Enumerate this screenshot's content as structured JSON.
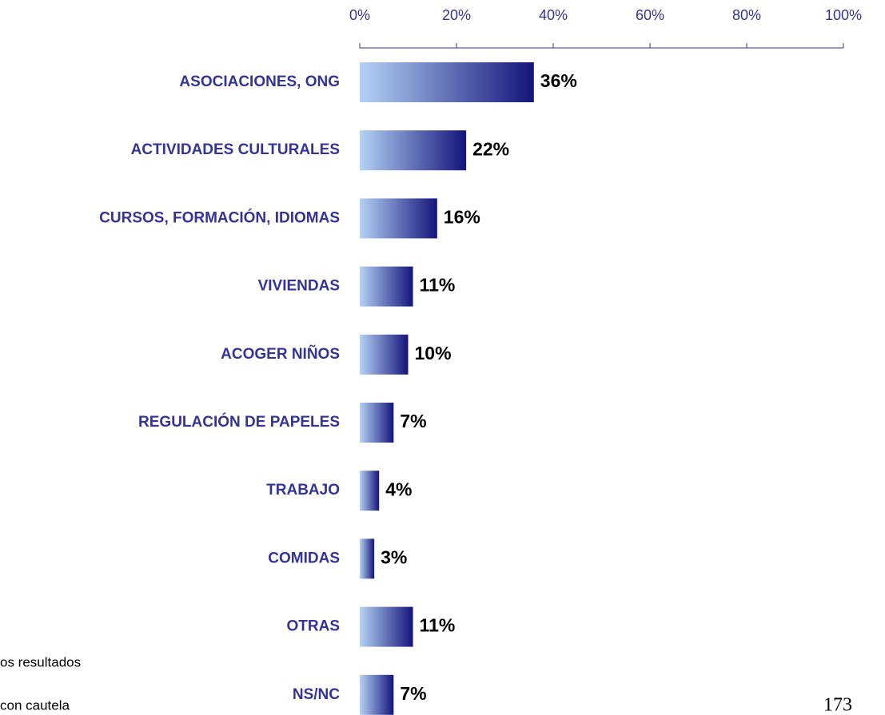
{
  "chart_data": {
    "type": "bar",
    "orientation": "horizontal",
    "categories": [
      "ASOCIACIONES, ONG",
      "ACTIVIDADES CULTURALES",
      "CURSOS, FORMACIÓN, IDIOMAS",
      "VIVIENDAS",
      "ACOGER NIÑOS",
      "REGULACIÓN DE PAPELES",
      "TRABAJO",
      "COMIDAS",
      "OTRAS",
      "NS/NC"
    ],
    "values": [
      36,
      22,
      16,
      11,
      10,
      7,
      4,
      3,
      11,
      7
    ],
    "value_labels": [
      "36%",
      "22%",
      "16%",
      "11%",
      "10%",
      "7%",
      "4%",
      "3%",
      "11%",
      "7%"
    ],
    "color": "#14147a",
    "xlim": [
      0,
      100
    ],
    "xticks": [
      {
        "value": 0,
        "label": "0%"
      },
      {
        "value": 20,
        "label": "20%"
      },
      {
        "value": 40,
        "label": "40%"
      },
      {
        "value": 60,
        "label": "60%"
      },
      {
        "value": 80,
        "label": "80%"
      },
      {
        "value": 100,
        "label": "100%"
      }
    ],
    "annotations": [
      "os resultados",
      "con cautela",
      "173"
    ]
  }
}
